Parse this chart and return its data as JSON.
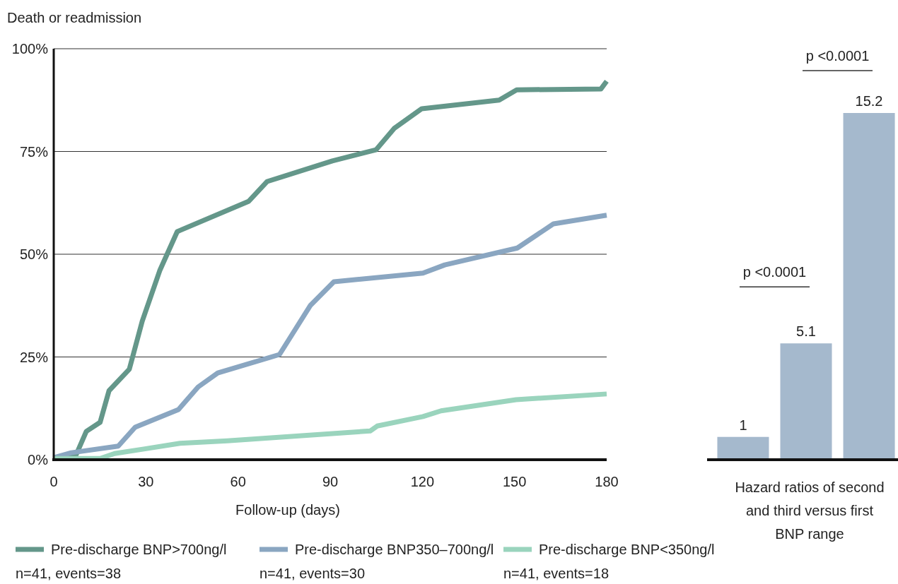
{
  "chart_data": [
    {
      "type": "line",
      "ylabel": "Death or readmission",
      "xlabel": "Follow-up (days)",
      "xlim": [
        0,
        180
      ],
      "xticks": [
        0,
        30,
        60,
        90,
        120,
        150,
        180
      ],
      "ylim": [
        0,
        100
      ],
      "yticks": [
        {
          "value": 0,
          "label": "0%"
        },
        {
          "value": 25,
          "label": "25%"
        },
        {
          "value": 50,
          "label": "50%"
        },
        {
          "value": 75,
          "label": "75%"
        },
        {
          "value": 100,
          "label": "100%"
        }
      ],
      "grid": "y",
      "legend": "bottom",
      "line_style": "solid",
      "series": [
        {
          "name": "Pre-discharge BNP>700ng/l\nn=41, events=38",
          "color": "#64978a",
          "x": [
            0,
            7,
            10.6,
            15.1,
            18,
            24.6,
            28.8,
            34.5,
            40.2,
            63.5,
            69.5,
            90.7,
            104.9,
            110.8,
            119.8,
            145,
            150.7,
            178.1,
            180
          ],
          "values": [
            0.3,
            0.7,
            6.9,
            9.1,
            16.8,
            22,
            33.7,
            46,
            55.5,
            62.9,
            67.7,
            72.7,
            75.4,
            80.6,
            85.4,
            87.5,
            90,
            90.2,
            92.1
          ]
        },
        {
          "name": "Pre-discharge BNP350–700ng/l\nn=41, events=30",
          "color": "#8aa6c1",
          "x": [
            0,
            5.7,
            21,
            26.5,
            40.6,
            47,
            53.4,
            73.5,
            83.6,
            91.2,
            120.2,
            127.3,
            150.9,
            162.7,
            180
          ],
          "values": [
            0.5,
            1.7,
            3.3,
            7.9,
            12.2,
            17.7,
            21.1,
            25.6,
            37.6,
            43.3,
            45.4,
            47.4,
            51.5,
            57.4,
            59.5
          ]
        },
        {
          "name": "Pre-discharge BNP<350ng/l\nn=41, events=18",
          "color": "#9ad4bd",
          "x": [
            0,
            15.1,
            19.8,
            29.3,
            41.1,
            56.5,
            103,
            105.3,
            120.2,
            126.1,
            150.5,
            180
          ],
          "values": [
            0.3,
            0.3,
            1.5,
            2.6,
            4,
            4.6,
            7,
            8.2,
            10.5,
            11.9,
            14.6,
            16
          ]
        }
      ]
    },
    {
      "type": "bar",
      "categories": [
        null,
        null,
        null
      ],
      "values": [
        1,
        5.1,
        15.2
      ],
      "color": "#a5b9cd",
      "data_labels": true,
      "xlabel": "Hazard ratios of second and third versus first BNP range",
      "annotations": [
        "p <0.0001",
        "p <0.0001"
      ]
    }
  ]
}
